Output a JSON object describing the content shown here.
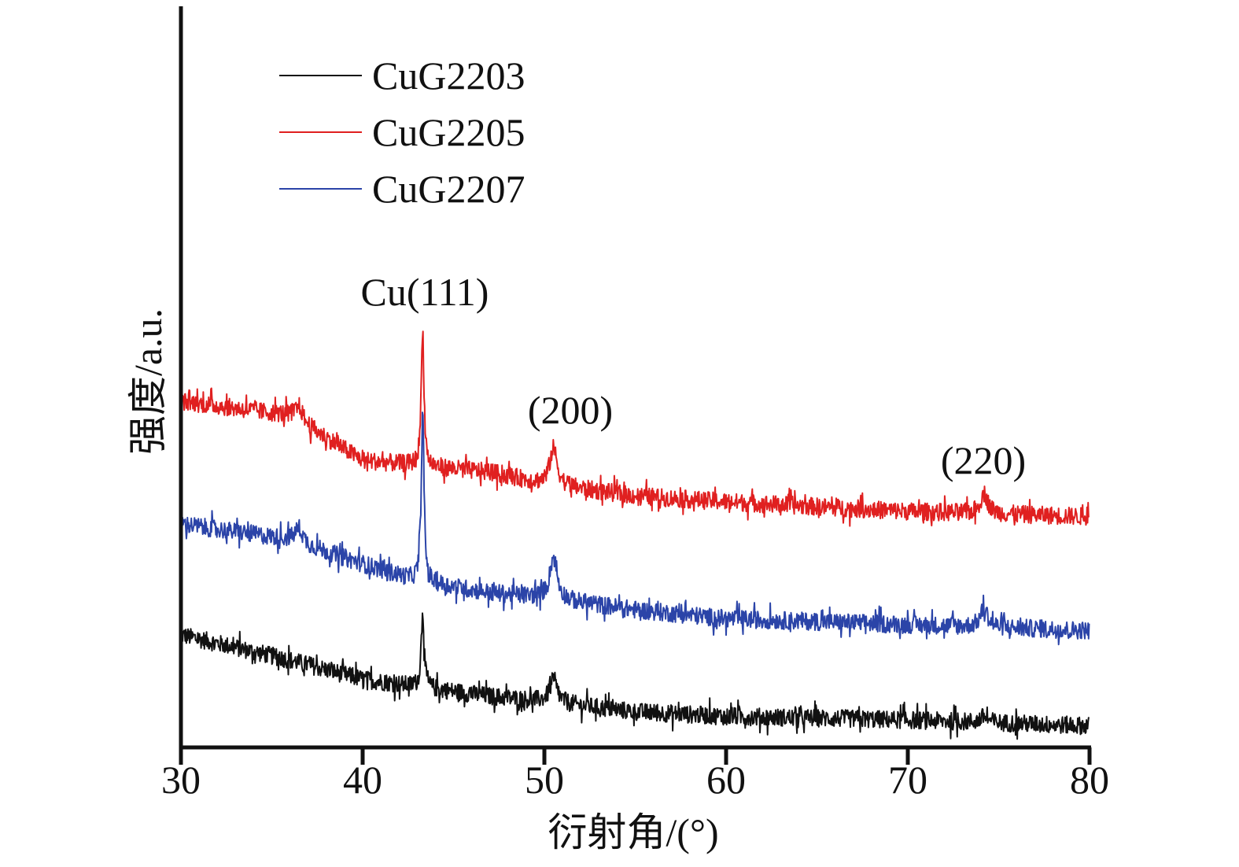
{
  "chart_data": {
    "type": "line",
    "title": "",
    "xlabel": "衍射角/(°)",
    "ylabel": "强度/a.u.",
    "xlim": [
      30,
      80
    ],
    "ylim": [
      0,
      100
    ],
    "xticks": [
      "30",
      "40",
      "50",
      "60",
      "70",
      "80"
    ],
    "xtick_values": [
      30,
      40,
      50,
      60,
      70,
      80
    ],
    "legend_position": "top-left",
    "grid": false,
    "noise_amplitude": 1.2,
    "annotations": [
      {
        "text": "Cu(111)",
        "x": 43.3
      },
      {
        "text": "(200)",
        "x": 50.5
      },
      {
        "text": "(220)",
        "x": 74.2
      }
    ],
    "series": [
      {
        "name": "CuG2203",
        "color": "#111111",
        "baseline_x": [
          30,
          36,
          40,
          43,
          47,
          50,
          55,
          60,
          70,
          80
        ],
        "baseline_y": [
          15,
          11.6,
          9,
          8,
          6.7,
          6,
          4.6,
          4,
          3.5,
          2.7
        ],
        "peaks": [
          {
            "x": 43.3,
            "height": 10.7
          },
          {
            "x": 50.5,
            "height": 3
          },
          {
            "x": 74.2,
            "height": 0.8
          }
        ]
      },
      {
        "name": "CuG2205",
        "color": "#e02020",
        "baseline_x": [
          30,
          36,
          40,
          43,
          47,
          50,
          55,
          60,
          70,
          80
        ],
        "baseline_y": [
          46.6,
          44.7,
          38.6,
          37.9,
          37,
          35.4,
          33.8,
          33,
          31.7,
          31
        ],
        "peaks": [
          {
            "x": 36.5,
            "height": 2
          },
          {
            "x": 43.3,
            "height": 18.5
          },
          {
            "x": 50.5,
            "height": 5
          },
          {
            "x": 74.2,
            "height": 2.7
          }
        ]
      },
      {
        "name": "CuG2207",
        "color": "#2b44a8",
        "baseline_x": [
          30,
          36,
          40,
          43,
          47,
          50,
          55,
          60,
          70,
          80
        ],
        "baseline_y": [
          30,
          27.9,
          24.6,
          22.3,
          20.7,
          20,
          18.4,
          17.2,
          16.4,
          15.6
        ],
        "peaks": [
          {
            "x": 36.5,
            "height": 2
          },
          {
            "x": 43.3,
            "height": 22.7
          },
          {
            "x": 50.5,
            "height": 5.7
          },
          {
            "x": 74.2,
            "height": 2.5
          }
        ]
      }
    ]
  }
}
